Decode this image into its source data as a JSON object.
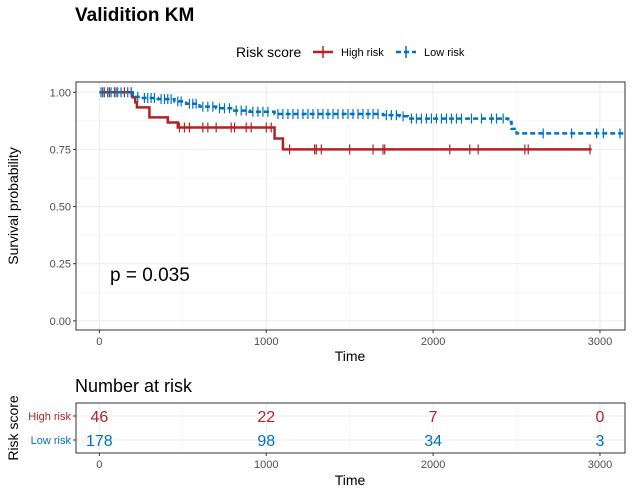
{
  "chart_data": {
    "type": "line",
    "title": "Validition KM",
    "xlabel": "Time",
    "ylabel": "Survival probability",
    "xlim": [
      -140,
      3150
    ],
    "ylim": [
      -0.04,
      1.045
    ],
    "x_ticks": [
      0,
      1000,
      2000,
      3000
    ],
    "y_ticks": [
      0.0,
      0.25,
      0.5,
      0.75,
      1.0
    ],
    "y_tick_labels": [
      "0.00",
      "0.25",
      "0.50",
      "0.75",
      "1.00"
    ],
    "grid": true,
    "legend": {
      "title": "Risk score",
      "placement": "top",
      "entries": [
        "High risk",
        "Low risk"
      ]
    },
    "annotation": "p = 0.035",
    "colors": {
      "high": "#B22222",
      "low": "#0072BB"
    },
    "series": [
      {
        "name": "High risk",
        "color": "#B22222",
        "dash": "solid",
        "steps": [
          [
            0,
            1.0
          ],
          [
            200,
            0.978
          ],
          [
            215,
            0.956
          ],
          [
            225,
            0.934
          ],
          [
            300,
            0.89
          ],
          [
            410,
            0.868
          ],
          [
            470,
            0.846
          ],
          [
            1050,
            0.798
          ],
          [
            1100,
            0.75
          ],
          [
            2950,
            0.75
          ]
        ],
        "censors": [
          [
            20,
            1.0
          ],
          [
            60,
            1.0
          ],
          [
            100,
            1.0
          ],
          [
            150,
            1.0
          ],
          [
            190,
            1.0
          ],
          [
            480,
            0.846
          ],
          [
            510,
            0.846
          ],
          [
            540,
            0.846
          ],
          [
            620,
            0.846
          ],
          [
            650,
            0.846
          ],
          [
            700,
            0.846
          ],
          [
            790,
            0.846
          ],
          [
            810,
            0.846
          ],
          [
            880,
            0.846
          ],
          [
            910,
            0.846
          ],
          [
            1000,
            0.846
          ],
          [
            1030,
            0.846
          ],
          [
            1140,
            0.75
          ],
          [
            1290,
            0.75
          ],
          [
            1300,
            0.75
          ],
          [
            1330,
            0.75
          ],
          [
            1500,
            0.75
          ],
          [
            1640,
            0.75
          ],
          [
            1700,
            0.75
          ],
          [
            1710,
            0.75
          ],
          [
            2100,
            0.75
          ],
          [
            2220,
            0.75
          ],
          [
            2270,
            0.75
          ],
          [
            2550,
            0.75
          ],
          [
            2570,
            0.75
          ],
          [
            2940,
            0.75
          ]
        ]
      },
      {
        "name": "Low risk",
        "color": "#0072BB",
        "dash": "dashed",
        "steps": [
          [
            0,
            1.0
          ],
          [
            200,
            0.98
          ],
          [
            250,
            0.975
          ],
          [
            350,
            0.97
          ],
          [
            450,
            0.96
          ],
          [
            520,
            0.95
          ],
          [
            600,
            0.937
          ],
          [
            700,
            0.93
          ],
          [
            800,
            0.92
          ],
          [
            900,
            0.915
          ],
          [
            1050,
            0.905
          ],
          [
            1700,
            0.9
          ],
          [
            1800,
            0.895
          ],
          [
            1850,
            0.885
          ],
          [
            2450,
            0.87
          ],
          [
            2470,
            0.84
          ],
          [
            2500,
            0.82
          ],
          [
            3150,
            0.82
          ]
        ],
        "censors": [
          [
            10,
            1.0
          ],
          [
            30,
            1.0
          ],
          [
            50,
            1.0
          ],
          [
            70,
            1.0
          ],
          [
            90,
            1.0
          ],
          [
            110,
            1.0
          ],
          [
            130,
            1.0
          ],
          [
            170,
            1.0
          ],
          [
            190,
            1.0
          ],
          [
            230,
            0.98
          ],
          [
            270,
            0.975
          ],
          [
            290,
            0.975
          ],
          [
            310,
            0.975
          ],
          [
            330,
            0.975
          ],
          [
            370,
            0.97
          ],
          [
            390,
            0.97
          ],
          [
            410,
            0.97
          ],
          [
            430,
            0.97
          ],
          [
            470,
            0.96
          ],
          [
            490,
            0.96
          ],
          [
            540,
            0.95
          ],
          [
            560,
            0.95
          ],
          [
            580,
            0.95
          ],
          [
            620,
            0.937
          ],
          [
            650,
            0.937
          ],
          [
            680,
            0.937
          ],
          [
            720,
            0.93
          ],
          [
            750,
            0.93
          ],
          [
            780,
            0.93
          ],
          [
            820,
            0.92
          ],
          [
            850,
            0.92
          ],
          [
            880,
            0.92
          ],
          [
            920,
            0.915
          ],
          [
            950,
            0.915
          ],
          [
            980,
            0.915
          ],
          [
            1010,
            0.915
          ],
          [
            1070,
            0.905
          ],
          [
            1100,
            0.905
          ],
          [
            1130,
            0.905
          ],
          [
            1160,
            0.905
          ],
          [
            1190,
            0.905
          ],
          [
            1220,
            0.905
          ],
          [
            1250,
            0.905
          ],
          [
            1280,
            0.905
          ],
          [
            1310,
            0.905
          ],
          [
            1340,
            0.905
          ],
          [
            1370,
            0.905
          ],
          [
            1400,
            0.905
          ],
          [
            1430,
            0.905
          ],
          [
            1460,
            0.905
          ],
          [
            1490,
            0.905
          ],
          [
            1520,
            0.905
          ],
          [
            1550,
            0.905
          ],
          [
            1580,
            0.905
          ],
          [
            1610,
            0.905
          ],
          [
            1640,
            0.905
          ],
          [
            1670,
            0.905
          ],
          [
            1720,
            0.9
          ],
          [
            1750,
            0.9
          ],
          [
            1780,
            0.9
          ],
          [
            1820,
            0.895
          ],
          [
            1870,
            0.885
          ],
          [
            1900,
            0.885
          ],
          [
            1930,
            0.885
          ],
          [
            1960,
            0.885
          ],
          [
            1990,
            0.885
          ],
          [
            2020,
            0.885
          ],
          [
            2050,
            0.885
          ],
          [
            2080,
            0.885
          ],
          [
            2110,
            0.885
          ],
          [
            2140,
            0.885
          ],
          [
            2170,
            0.885
          ],
          [
            2230,
            0.885
          ],
          [
            2290,
            0.885
          ],
          [
            2350,
            0.885
          ],
          [
            2380,
            0.885
          ],
          [
            2420,
            0.885
          ],
          [
            2660,
            0.82
          ],
          [
            2830,
            0.82
          ],
          [
            2980,
            0.82
          ],
          [
            3020,
            0.82
          ],
          [
            3120,
            0.82
          ]
        ]
      }
    ],
    "risk_table": {
      "title": "Number at risk",
      "ylabel": "Risk score",
      "xlabel": "Time",
      "time_points": [
        0,
        1000,
        2000,
        3000
      ],
      "rows": [
        {
          "label": "High risk",
          "color": "#B22222",
          "counts": [
            "46",
            "22",
            "7",
            "0"
          ]
        },
        {
          "label": "Low risk",
          "color": "#0072BB",
          "counts": [
            "178",
            "98",
            "34",
            "3"
          ]
        }
      ]
    }
  }
}
